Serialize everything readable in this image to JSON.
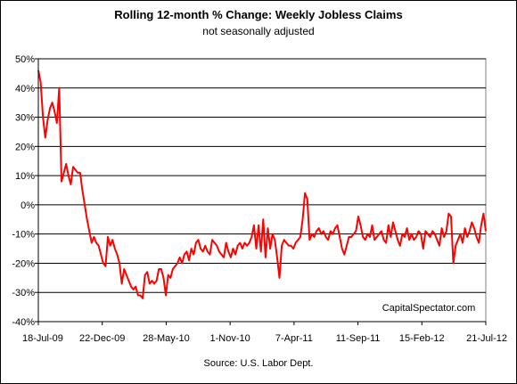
{
  "chart_data": {
    "type": "line",
    "title": "Rolling 12-month %  Change: Weekly Jobless Claims",
    "subtitle": "not seasonally adjusted",
    "source": "Source: U.S. Labor Dept.",
    "watermark": "CapitalSpectator.com",
    "xlabel": "",
    "ylabel": "",
    "ylim": [
      -40,
      50
    ],
    "y_ticks": [
      50,
      40,
      30,
      20,
      10,
      0,
      -10,
      -20,
      -30,
      -40
    ],
    "y_tick_labels": [
      "50%",
      "40%",
      "30%",
      "20%",
      "10%",
      "0%",
      "-10%",
      "-20%",
      "-30%",
      "-40%"
    ],
    "x_tick_labels": [
      "18-Jul-09",
      "22-Dec-09",
      "28-May-10",
      "1-Nov-10",
      "7-Apr-11",
      "11-Sep-11",
      "15-Feb-12",
      "21-Jul-12"
    ],
    "grid": true,
    "legend": "none",
    "colors": {
      "line": "#ff0000",
      "plot_background": "#ffffff",
      "grid": "#000000"
    },
    "series": [
      {
        "values": [
          46,
          42,
          30,
          23,
          29,
          33,
          35,
          32,
          28,
          40,
          8,
          11,
          14,
          10,
          7,
          13,
          12,
          11,
          11,
          5,
          0,
          -5,
          -9,
          -13,
          -11,
          -13,
          -14,
          -17,
          -20,
          -21,
          -11,
          -14,
          -12,
          -15,
          -17,
          -20,
          -27,
          -22,
          -24,
          -26,
          -28,
          -29,
          -28,
          -31,
          -31,
          -32,
          -24,
          -23,
          -27,
          -26,
          -27,
          -26,
          -22,
          -22,
          -25,
          -31,
          -24,
          -25,
          -22,
          -21,
          -20,
          -18,
          -20,
          -17,
          -16,
          -19,
          -15,
          -17,
          -13,
          -12,
          -15,
          -16,
          -14,
          -16,
          -17,
          -12,
          -13,
          -14,
          -16,
          -17,
          -18,
          -13,
          -16,
          -18,
          -15,
          -17,
          -14,
          -13,
          -15,
          -13,
          -14,
          -13,
          -11,
          -7,
          -15,
          -7,
          -16,
          -5,
          -18,
          -8,
          -15,
          -10,
          -12,
          -18,
          -25,
          -14,
          -12,
          -13,
          -14,
          -14,
          -15,
          -13,
          -12,
          -11,
          -5,
          4,
          2,
          -12,
          -10,
          -11,
          -9,
          -8,
          -10,
          -9,
          -11,
          -12,
          -9,
          -10,
          -8,
          -7,
          -11,
          -15,
          -17,
          -14,
          -11,
          -11,
          -10,
          -9,
          -4,
          -7,
          -11,
          -12,
          -10,
          -11,
          -7,
          -12,
          -11,
          -10,
          -9,
          -12,
          -13,
          -7,
          -11,
          -6,
          -9,
          -12,
          -14,
          -10,
          -11,
          -8,
          -12,
          -10,
          -12,
          -11,
          -9,
          -10,
          -15,
          -9,
          -10,
          -11,
          -9,
          -10,
          -12,
          -14,
          -8,
          -11,
          -9,
          -3,
          -4,
          -20,
          -14,
          -12,
          -10,
          -13,
          -8,
          -11,
          -9,
          -6,
          -8,
          -11,
          -13,
          -7,
          -3,
          -9
        ]
      }
    ]
  }
}
